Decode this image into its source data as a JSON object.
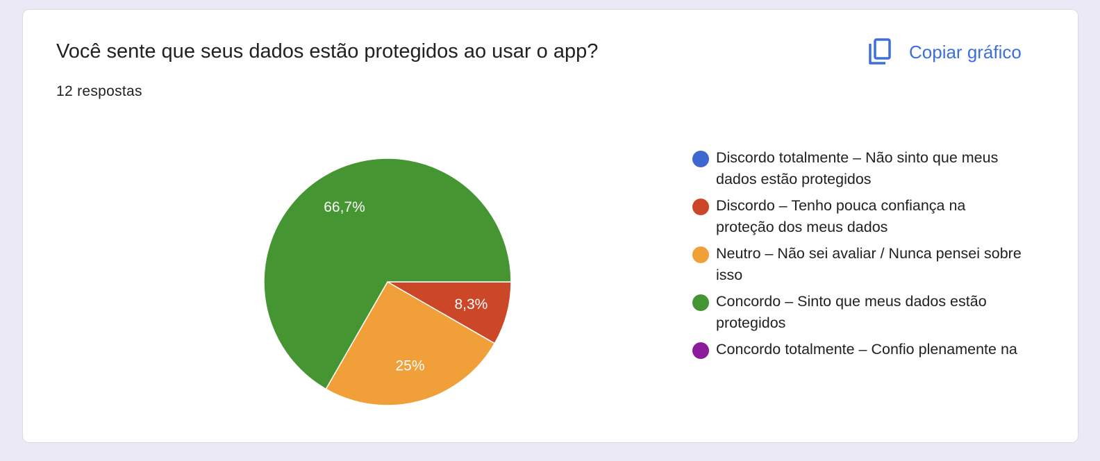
{
  "card": {
    "title": "Você sente que seus dados estão protegidos ao usar o app?",
    "response_count": "12 respostas",
    "copy_label": "Copiar gráfico",
    "copy_icon": "copy-icon",
    "accent_color": "#3c6fd8"
  },
  "chart_data": {
    "type": "pie",
    "title": "Você sente que seus dados estão protegidos ao usar o app?",
    "slices": [
      {
        "label": "Discordo totalmente – Não sinto que meus dados estão protegidos",
        "value": 0,
        "display": "",
        "color": "#3d68d0"
      },
      {
        "label": "Discordo – Tenho pouca confiança na proteção dos meus dados",
        "value": 8.3,
        "display": "8,3%",
        "color": "#cc4628"
      },
      {
        "label": "Neutro – Não sei avaliar / Nunca pensei sobre isso",
        "value": 25,
        "display": "25%",
        "color": "#f19f38"
      },
      {
        "label": "Concordo – Sinto que meus dados estão protegidos",
        "value": 66.7,
        "display": "66,7%",
        "color": "#459632"
      },
      {
        "label": "Concordo totalmente – Confio plenamente na",
        "value": 0,
        "display": "",
        "color": "#8c1b9c"
      }
    ],
    "legend_position": "right"
  }
}
